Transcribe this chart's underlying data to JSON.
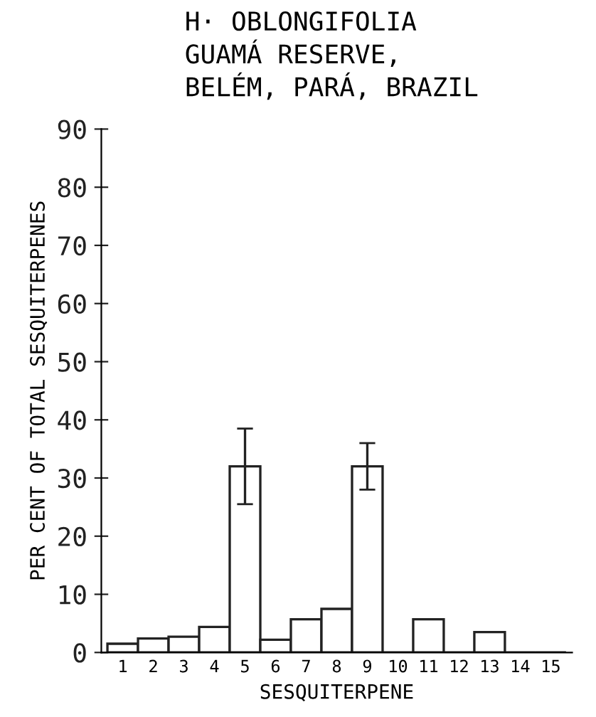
{
  "chart_data": {
    "type": "bar",
    "title": "H· OBLONGIFOLIA\nGUAMÁ RESERVE,\nBELÉM, PARÁ, BRAZIL",
    "xlabel": "SESQUITERPENE",
    "ylabel": "PER CENT OF TOTAL SESQUITERPENES",
    "categories": [
      "1",
      "2",
      "3",
      "4",
      "5",
      "6",
      "7",
      "8",
      "9",
      "10",
      "11",
      "12",
      "13",
      "14",
      "15"
    ],
    "values": [
      1.5,
      2.4,
      2.7,
      4.4,
      32,
      2.2,
      5.7,
      7.5,
      32,
      0,
      5.7,
      0,
      3.5,
      0,
      0
    ],
    "errors": [
      null,
      null,
      null,
      null,
      6.5,
      null,
      null,
      null,
      4,
      null,
      null,
      null,
      null,
      null,
      null
    ],
    "color": "#ffffff",
    "ylim": [
      0,
      90
    ],
    "yticks": [
      0,
      10,
      20,
      30,
      40,
      50,
      60,
      70,
      80,
      90
    ],
    "grid": false,
    "legend": false
  }
}
